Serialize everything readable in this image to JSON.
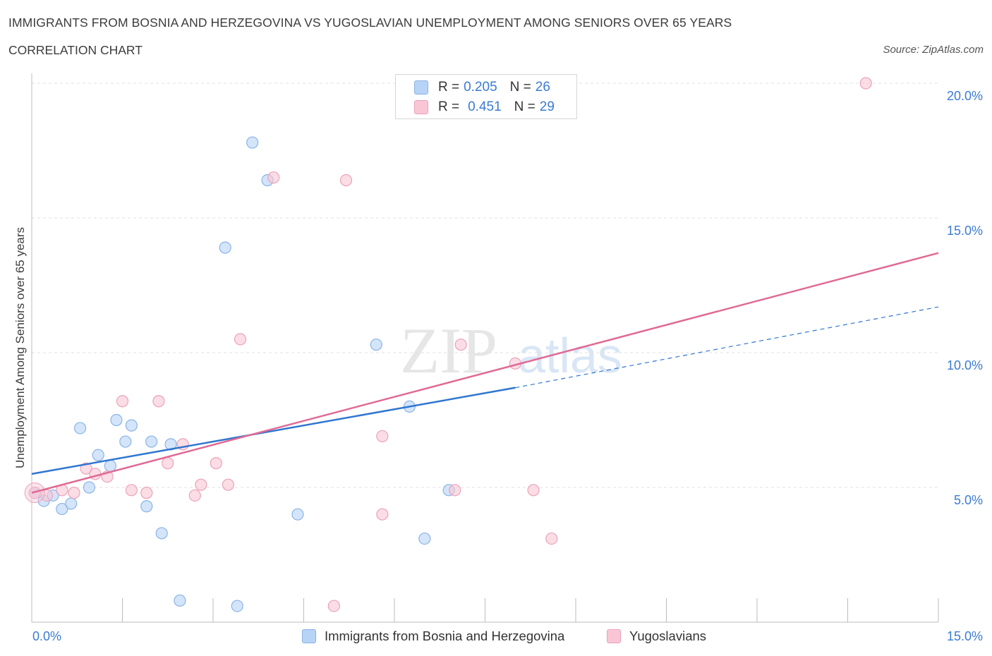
{
  "header": {
    "title": "IMMIGRANTS FROM BOSNIA AND HERZEGOVINA VS YUGOSLAVIAN UNEMPLOYMENT AMONG SENIORS OVER 65 YEARS",
    "subtitle": "CORRELATION CHART",
    "source": "Source: ZipAtlas.com"
  },
  "watermark": {
    "zip": "ZIP",
    "atlas": "atlas"
  },
  "legend": {
    "r_label": "R =",
    "n_label": "N =",
    "rows": [
      {
        "r": "0.205",
        "n": "26"
      },
      {
        "r": "0.451",
        "n": "29"
      }
    ]
  },
  "chart_data": {
    "type": "scatter",
    "ylabel": "Unemployment Among Seniors over 65 years",
    "xlim": [
      0,
      15
    ],
    "ylim": [
      0,
      20
    ],
    "x_tick_labels": [
      {
        "value": 0,
        "label": "0.0%"
      },
      {
        "value": 15,
        "label": "15.0%"
      }
    ],
    "y_tick_labels": [
      {
        "value": 5,
        "label": "5.0%"
      },
      {
        "value": 10,
        "label": "10.0%"
      },
      {
        "value": 15,
        "label": "15.0%"
      },
      {
        "value": 20,
        "label": "20.0%"
      }
    ],
    "grid": true,
    "colors": {
      "blue_fill": "#b7d3f6",
      "blue_edge": "#8ab3e6",
      "blue_line": "#3076d0",
      "pink_fill": "#f9c6d5",
      "pink_edge": "#eba2b8",
      "pink_line": "#e06a95",
      "tick_text": "#3a7bd5"
    },
    "series": [
      {
        "name": "Immigrants from Bosnia and Herzegovina",
        "color": "#b7d3f6",
        "points": [
          [
            0.05,
            4.8
          ],
          [
            0.2,
            4.5
          ],
          [
            0.35,
            4.7
          ],
          [
            0.5,
            4.2
          ],
          [
            0.65,
            4.4
          ],
          [
            0.8,
            7.2
          ],
          [
            0.95,
            5.0
          ],
          [
            1.1,
            6.2
          ],
          [
            1.3,
            5.8
          ],
          [
            1.4,
            7.5
          ],
          [
            1.55,
            6.7
          ],
          [
            1.65,
            7.3
          ],
          [
            1.9,
            4.3
          ],
          [
            1.98,
            6.7
          ],
          [
            2.15,
            3.3
          ],
          [
            2.3,
            6.6
          ],
          [
            2.45,
            0.8
          ],
          [
            3.2,
            13.9
          ],
          [
            3.4,
            0.6
          ],
          [
            3.65,
            17.8
          ],
          [
            3.9,
            16.4
          ],
          [
            4.4,
            4.0
          ],
          [
            5.7,
            10.3
          ],
          [
            6.25,
            8.0
          ],
          [
            6.5,
            3.1
          ],
          [
            6.9,
            4.9
          ]
        ],
        "trend": {
          "x0": 0,
          "y0": 5.5,
          "x1": 8,
          "y1": 8.7,
          "dashed_to_x": 15,
          "dashed_to_y": 11.7
        }
      },
      {
        "name": "Yugoslavians",
        "color": "#f9c6d5",
        "points": [
          [
            0.05,
            4.8
          ],
          [
            0.25,
            4.7
          ],
          [
            0.5,
            4.9
          ],
          [
            0.7,
            4.8
          ],
          [
            0.9,
            5.7
          ],
          [
            1.05,
            5.5
          ],
          [
            1.25,
            5.4
          ],
          [
            1.5,
            8.2
          ],
          [
            1.65,
            4.9
          ],
          [
            1.9,
            4.8
          ],
          [
            2.1,
            8.2
          ],
          [
            2.25,
            5.9
          ],
          [
            2.5,
            6.6
          ],
          [
            2.7,
            4.7
          ],
          [
            2.8,
            5.1
          ],
          [
            3.05,
            5.9
          ],
          [
            3.25,
            5.1
          ],
          [
            3.45,
            10.5
          ],
          [
            4.0,
            16.5
          ],
          [
            5.0,
            0.6
          ],
          [
            5.2,
            16.4
          ],
          [
            5.8,
            4.0
          ],
          [
            5.8,
            6.9
          ],
          [
            7.0,
            4.9
          ],
          [
            7.1,
            10.3
          ],
          [
            8.0,
            9.6
          ],
          [
            8.3,
            4.9
          ],
          [
            8.6,
            3.1
          ],
          [
            13.8,
            20.0
          ]
        ],
        "trend": {
          "x0": 0,
          "y0": 4.8,
          "x1": 15,
          "y1": 13.7
        }
      }
    ]
  }
}
